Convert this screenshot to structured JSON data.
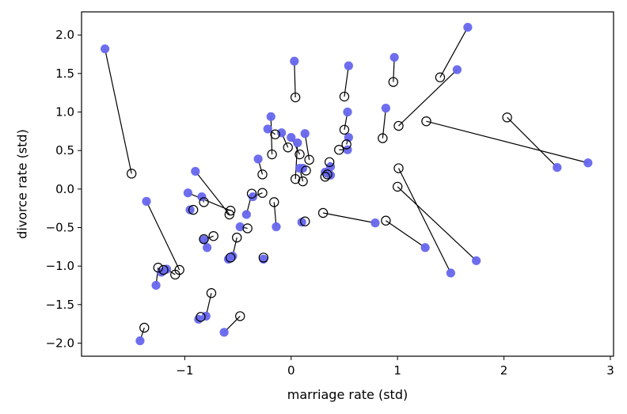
{
  "chart_data": {
    "type": "scatter",
    "xlabel": "marriage rate (std)",
    "ylabel": "divorce rate (std)",
    "xlim": [
      -1.97,
      3.03
    ],
    "ylim": [
      -2.17,
      2.3
    ],
    "xticks": [
      -1,
      0,
      1,
      2,
      3
    ],
    "yticks": [
      -2.0,
      -1.5,
      -1.0,
      -0.5,
      0.0,
      0.5,
      1.0,
      1.5,
      2.0
    ],
    "ytick_labels": [
      "−2.0",
      "−1.5",
      "−1.0",
      "−0.5",
      "0.0",
      "0.5",
      "1.0",
      "1.5",
      "2.0"
    ],
    "xtick_labels": [
      "−1",
      "0",
      "1",
      "2",
      "3"
    ],
    "grid": false,
    "series": [
      {
        "marker": "filled-circle",
        "color": "#6666ee"
      },
      {
        "marker": "open-circle",
        "color": "#000000"
      }
    ],
    "pairs": [
      {
        "observed": [
          -1.75,
          1.82
        ],
        "predicted": [
          -1.5,
          0.2
        ]
      },
      {
        "observed": [
          1.66,
          2.1
        ],
        "predicted": [
          1.4,
          1.45
        ]
      },
      {
        "observed": [
          0.97,
          1.71
        ],
        "predicted": [
          0.96,
          1.39
        ]
      },
      {
        "observed": [
          0.54,
          1.6
        ],
        "predicted": [
          0.5,
          1.2
        ]
      },
      {
        "observed": [
          0.03,
          1.66
        ],
        "predicted": [
          0.04,
          1.19
        ]
      },
      {
        "observed": [
          1.56,
          1.55
        ],
        "predicted": [
          1.01,
          0.82
        ]
      },
      {
        "observed": [
          0.89,
          1.05
        ],
        "predicted": [
          0.86,
          0.66
        ]
      },
      {
        "observed": [
          0.53,
          1.0
        ],
        "predicted": [
          0.5,
          0.77
        ]
      },
      {
        "observed": [
          2.79,
          0.34
        ],
        "predicted": [
          1.27,
          0.88
        ]
      },
      {
        "observed": [
          2.5,
          0.28
        ],
        "predicted": [
          2.03,
          0.93
        ]
      },
      {
        "observed": [
          -0.19,
          0.94
        ],
        "predicted": [
          -0.18,
          0.45
        ]
      },
      {
        "observed": [
          -0.22,
          0.78
        ],
        "predicted": [
          -0.15,
          0.71
        ]
      },
      {
        "observed": [
          -0.09,
          0.73
        ],
        "predicted": [
          -0.03,
          0.54
        ]
      },
      {
        "observed": [
          0.0,
          0.67
        ],
        "predicted": [
          0.08,
          0.45
        ]
      },
      {
        "observed": [
          0.13,
          0.72
        ],
        "predicted": [
          0.17,
          0.38
        ]
      },
      {
        "observed": [
          0.54,
          0.67
        ],
        "predicted": [
          0.52,
          0.58
        ]
      },
      {
        "observed": [
          0.53,
          0.51
        ],
        "predicted": [
          0.45,
          0.51
        ]
      },
      {
        "observed": [
          0.06,
          0.6
        ],
        "predicted": [
          0.04,
          0.13
        ]
      },
      {
        "observed": [
          0.08,
          0.27
        ],
        "predicted": [
          0.11,
          0.1
        ]
      },
      {
        "observed": [
          0.37,
          0.29
        ],
        "predicted": [
          0.36,
          0.35
        ]
      },
      {
        "observed": [
          0.37,
          0.18
        ],
        "predicted": [
          0.32,
          0.16
        ]
      },
      {
        "observed": [
          0.32,
          0.22
        ],
        "predicted": [
          0.34,
          0.19
        ]
      },
      {
        "observed": [
          0.11,
          0.27
        ],
        "predicted": [
          0.14,
          0.24
        ]
      },
      {
        "observed": [
          -0.31,
          0.39
        ],
        "predicted": [
          -0.27,
          0.19
        ]
      },
      {
        "observed": [
          -0.9,
          0.23
        ],
        "predicted": [
          -0.58,
          -0.33
        ]
      },
      {
        "observed": [
          -0.97,
          -0.05
        ],
        "predicted": [
          -0.57,
          -0.28
        ]
      },
      {
        "observed": [
          -0.84,
          -0.1
        ],
        "predicted": [
          -0.82,
          -0.17
        ]
      },
      {
        "observed": [
          -0.95,
          -0.27
        ],
        "predicted": [
          -0.92,
          -0.27
        ]
      },
      {
        "observed": [
          -0.36,
          -0.1
        ],
        "predicted": [
          -0.27,
          -0.05
        ]
      },
      {
        "observed": [
          -0.42,
          -0.33
        ],
        "predicted": [
          -0.37,
          -0.06
        ]
      },
      {
        "observed": [
          -0.14,
          -0.49
        ],
        "predicted": [
          -0.16,
          -0.17
        ]
      },
      {
        "observed": [
          -0.48,
          -0.49
        ],
        "predicted": [
          -0.41,
          -0.51
        ]
      },
      {
        "observed": [
          0.1,
          -0.43
        ],
        "predicted": [
          0.13,
          -0.42
        ]
      },
      {
        "observed": [
          0.79,
          -0.44
        ],
        "predicted": [
          0.3,
          -0.31
        ]
      },
      {
        "observed": [
          1.26,
          -0.76
        ],
        "predicted": [
          0.89,
          -0.41
        ]
      },
      {
        "observed": [
          1.74,
          -0.93
        ],
        "predicted": [
          1.0,
          0.03
        ]
      },
      {
        "observed": [
          1.5,
          -1.09
        ],
        "predicted": [
          1.01,
          0.27
        ]
      },
      {
        "observed": [
          -1.36,
          -0.16
        ],
        "predicted": [
          -1.05,
          -1.05
        ]
      },
      {
        "observed": [
          -0.82,
          -0.66
        ],
        "predicted": [
          -0.73,
          -0.61
        ]
      },
      {
        "observed": [
          -0.79,
          -0.76
        ],
        "predicted": [
          -0.82,
          -0.65
        ]
      },
      {
        "observed": [
          -0.55,
          -0.87
        ],
        "predicted": [
          -0.51,
          -0.63
        ]
      },
      {
        "observed": [
          -0.59,
          -0.91
        ],
        "predicted": [
          -0.57,
          -0.89
        ]
      },
      {
        "observed": [
          -0.26,
          -0.91
        ],
        "predicted": [
          -0.26,
          -0.89
        ]
      },
      {
        "observed": [
          -1.17,
          -1.04
        ],
        "predicted": [
          -1.09,
          -1.11
        ]
      },
      {
        "observed": [
          -1.27,
          -1.25
        ],
        "predicted": [
          -1.25,
          -1.02
        ]
      },
      {
        "observed": [
          -1.22,
          -1.08
        ],
        "predicted": [
          -1.2,
          -1.05
        ]
      },
      {
        "observed": [
          -0.8,
          -1.65
        ],
        "predicted": [
          -0.75,
          -1.35
        ]
      },
      {
        "observed": [
          -0.87,
          -1.69
        ],
        "predicted": [
          -0.85,
          -1.66
        ]
      },
      {
        "observed": [
          -0.63,
          -1.86
        ],
        "predicted": [
          -0.48,
          -1.65
        ]
      },
      {
        "observed": [
          -1.42,
          -1.97
        ],
        "predicted": [
          -1.38,
          -1.8
        ]
      }
    ]
  }
}
